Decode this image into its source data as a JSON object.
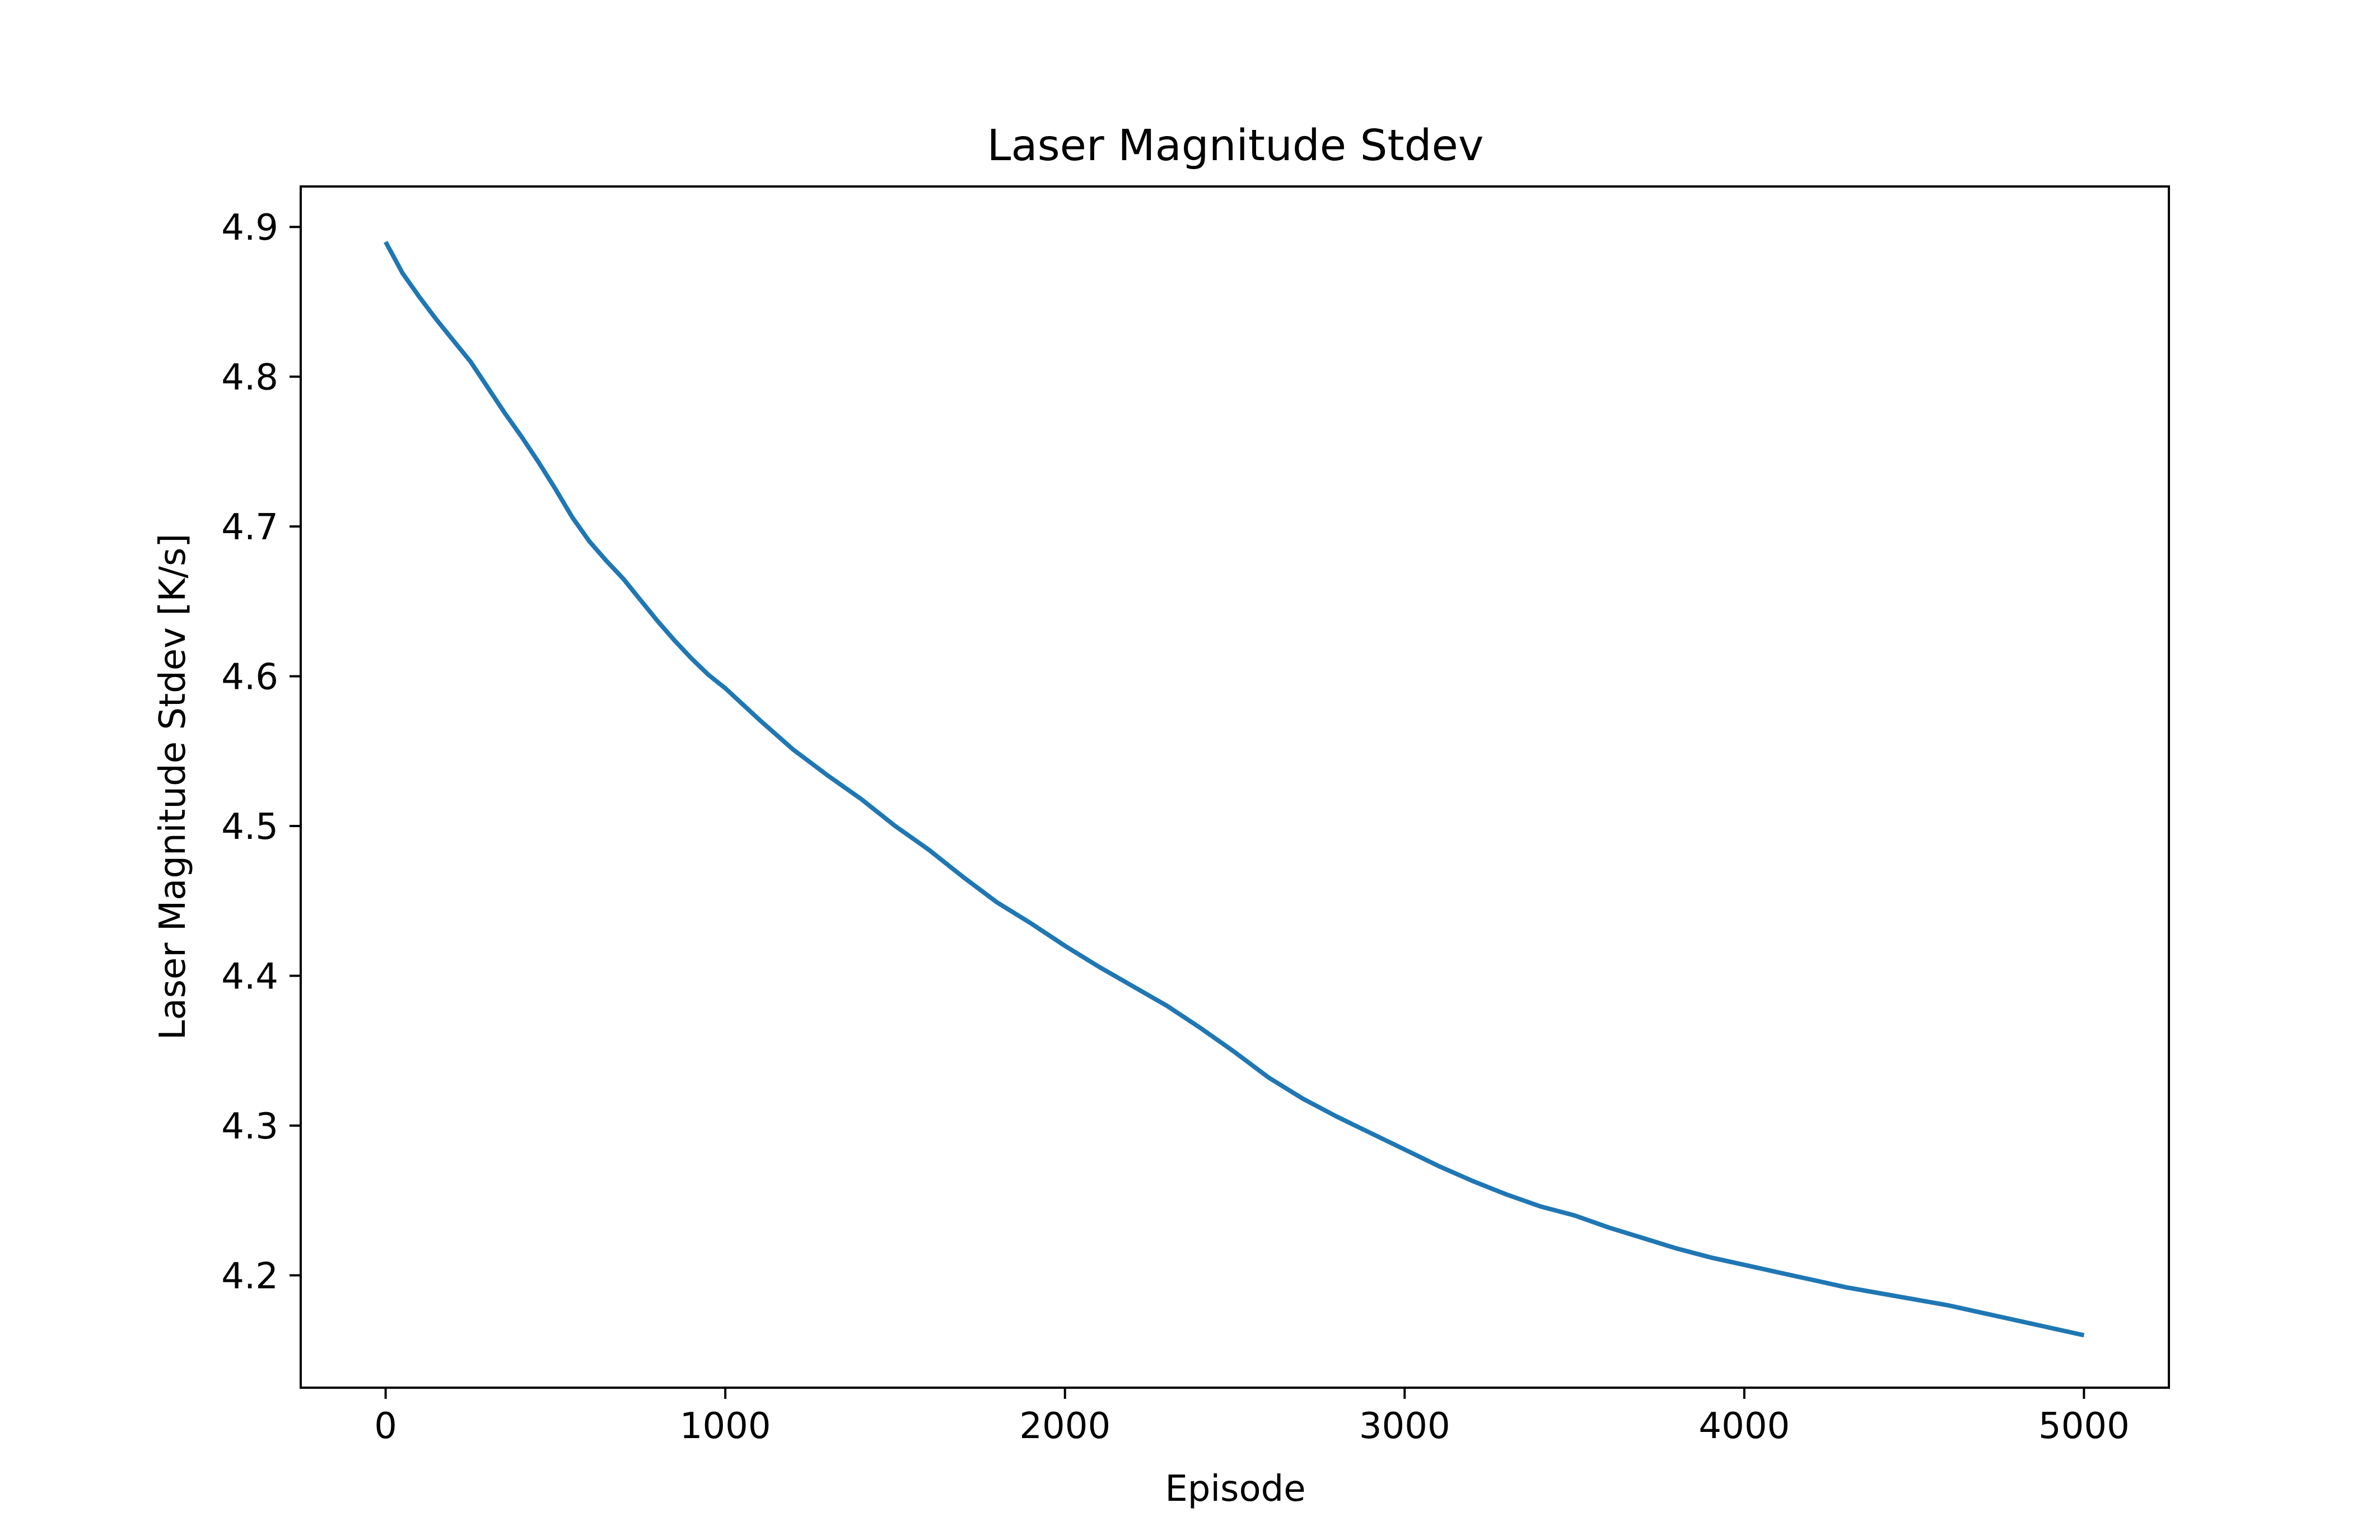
{
  "chart_data": {
    "type": "line",
    "title": "Laser Magnitude Stdev",
    "xlabel": "Episode",
    "ylabel": "Laser Magnitude Stdev [K/s]",
    "xlim": [
      -250,
      5250
    ],
    "ylim": [
      4.125,
      4.927
    ],
    "xticks": [
      0,
      1000,
      2000,
      3000,
      4000,
      5000
    ],
    "xtick_labels": [
      "0",
      "1000",
      "2000",
      "3000",
      "4000",
      "5000"
    ],
    "yticks": [
      4.2,
      4.3,
      4.4,
      4.5,
      4.6,
      4.7,
      4.8,
      4.9
    ],
    "ytick_labels": [
      "4.2",
      "4.3",
      "4.4",
      "4.5",
      "4.6",
      "4.7",
      "4.8",
      "4.9"
    ],
    "grid": false,
    "series": [
      {
        "color": "#1f77b4",
        "x": [
          0,
          50,
          100,
          150,
          200,
          250,
          300,
          350,
          400,
          450,
          500,
          550,
          600,
          650,
          700,
          750,
          800,
          850,
          900,
          950,
          1000,
          1100,
          1200,
          1300,
          1400,
          1500,
          1600,
          1700,
          1800,
          1900,
          2000,
          2100,
          2200,
          2300,
          2400,
          2500,
          2600,
          2700,
          2800,
          2900,
          3000,
          3100,
          3200,
          3300,
          3400,
          3500,
          3600,
          3700,
          3800,
          3900,
          4000,
          4100,
          4200,
          4300,
          4400,
          4500,
          4600,
          4700,
          4800,
          4900,
          5000
        ],
        "y": [
          4.89,
          4.869,
          4.853,
          4.838,
          4.824,
          4.81,
          4.793,
          4.776,
          4.76,
          4.743,
          4.725,
          4.706,
          4.69,
          4.677,
          4.665,
          4.651,
          4.637,
          4.624,
          4.612,
          4.601,
          4.592,
          4.571,
          4.551,
          4.534,
          4.518,
          4.5,
          4.484,
          4.466,
          4.449,
          4.435,
          4.42,
          4.406,
          4.393,
          4.38,
          4.365,
          4.349,
          4.332,
          4.318,
          4.306,
          4.295,
          4.284,
          4.273,
          4.263,
          4.254,
          4.246,
          4.24,
          4.232,
          4.225,
          4.218,
          4.212,
          4.207,
          4.202,
          4.197,
          4.192,
          4.188,
          4.184,
          4.18,
          4.175,
          4.17,
          4.165,
          4.16
        ]
      }
    ]
  }
}
